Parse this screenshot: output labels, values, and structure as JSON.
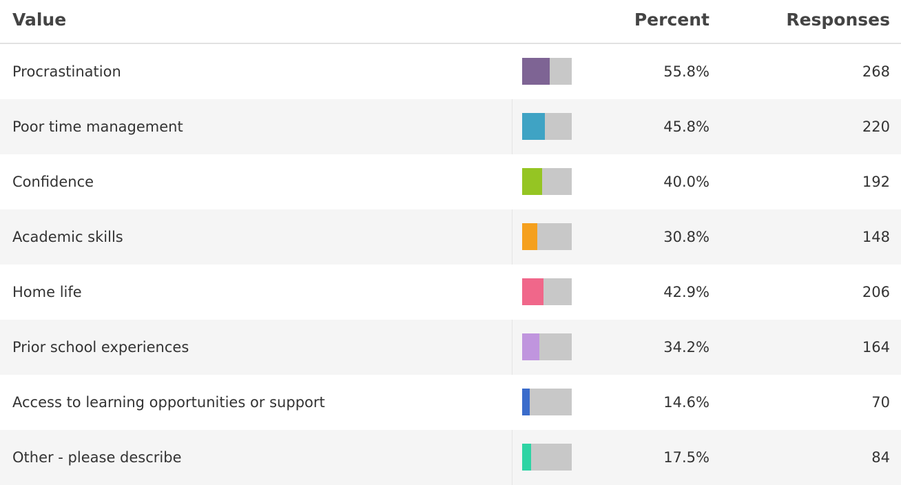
{
  "table": {
    "headers": [
      "Value",
      "Percent",
      "Responses"
    ],
    "rows": [
      {
        "value": "Procrastination",
        "percent": 55.8,
        "percent_label": "55.8%",
        "responses": 268,
        "color": "#7e6494"
      },
      {
        "value": "Poor time management",
        "percent": 45.8,
        "percent_label": "45.8%",
        "responses": 220,
        "color": "#3fa3c4"
      },
      {
        "value": "Confidence",
        "percent": 40.0,
        "percent_label": "40.0%",
        "responses": 192,
        "color": "#95c523"
      },
      {
        "value": "Academic skills",
        "percent": 30.8,
        "percent_label": "30.8%",
        "responses": 148,
        "color": "#f5a01e"
      },
      {
        "value": "Home life",
        "percent": 42.9,
        "percent_label": "42.9%",
        "responses": 206,
        "color": "#f0678a"
      },
      {
        "value": "Prior school experiences",
        "percent": 34.2,
        "percent_label": "34.2%",
        "responses": 164,
        "color": "#c095de"
      },
      {
        "value": "Access to learning opportunities or support",
        "percent": 14.6,
        "percent_label": "14.6%",
        "responses": 70,
        "color": "#3b6ccb"
      },
      {
        "value": "Other - please describe",
        "percent": 17.5,
        "percent_label": "17.5%",
        "responses": 84,
        "color": "#2ed4a4"
      }
    ]
  }
}
